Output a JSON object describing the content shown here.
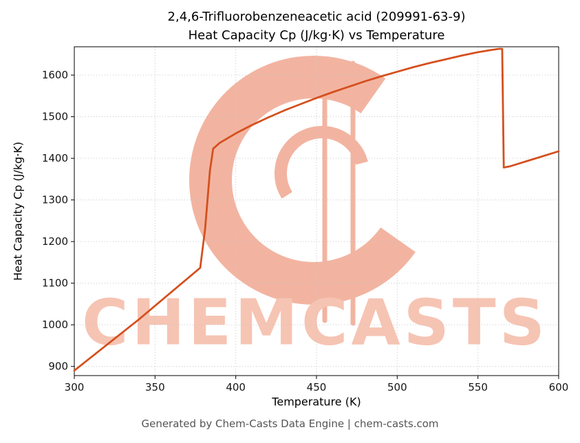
{
  "footer_text": "Generated by Chem-Casts Data Engine | chem-casts.com",
  "watermark": {
    "text": "CHEMCASTS",
    "color": "#f6c4b3"
  },
  "chart_data": {
    "type": "line",
    "title": "2,4,6-Trifluorobenzeneacetic acid (209991-63-9)",
    "subtitle": "Heat Capacity Cp (J/kg·K) vs Temperature",
    "xlabel": "Temperature (K)",
    "ylabel": "Heat Capacity Cp (J/kg·K)",
    "xlim": [
      300,
      600
    ],
    "ylim": [
      878,
      1668
    ],
    "xticks": [
      300,
      350,
      400,
      450,
      500,
      550,
      600
    ],
    "yticks": [
      900,
      1000,
      1100,
      1200,
      1300,
      1400,
      1500,
      1600
    ],
    "grid": true,
    "grid_style": "dotted",
    "legend": "none",
    "line_color": "#d4501e",
    "series": [
      {
        "name": "Heat Capacity Cp (J/kg·K)",
        "x": [
          300,
          340,
          378,
          381,
          384,
          386,
          390,
          400,
          410,
          420,
          430,
          440,
          450,
          460,
          470,
          480,
          490,
          500,
          510,
          520,
          530,
          540,
          550,
          558,
          563,
          565,
          566,
          570,
          600
        ],
        "y": [
          890,
          1013,
          1137,
          1230,
          1370,
          1423,
          1437,
          1460,
          1480,
          1498,
          1515,
          1530,
          1545,
          1559,
          1572,
          1585,
          1597,
          1608,
          1619,
          1629,
          1638,
          1647,
          1655,
          1660,
          1663,
          1663,
          1378,
          1381,
          1417
        ]
      }
    ]
  }
}
